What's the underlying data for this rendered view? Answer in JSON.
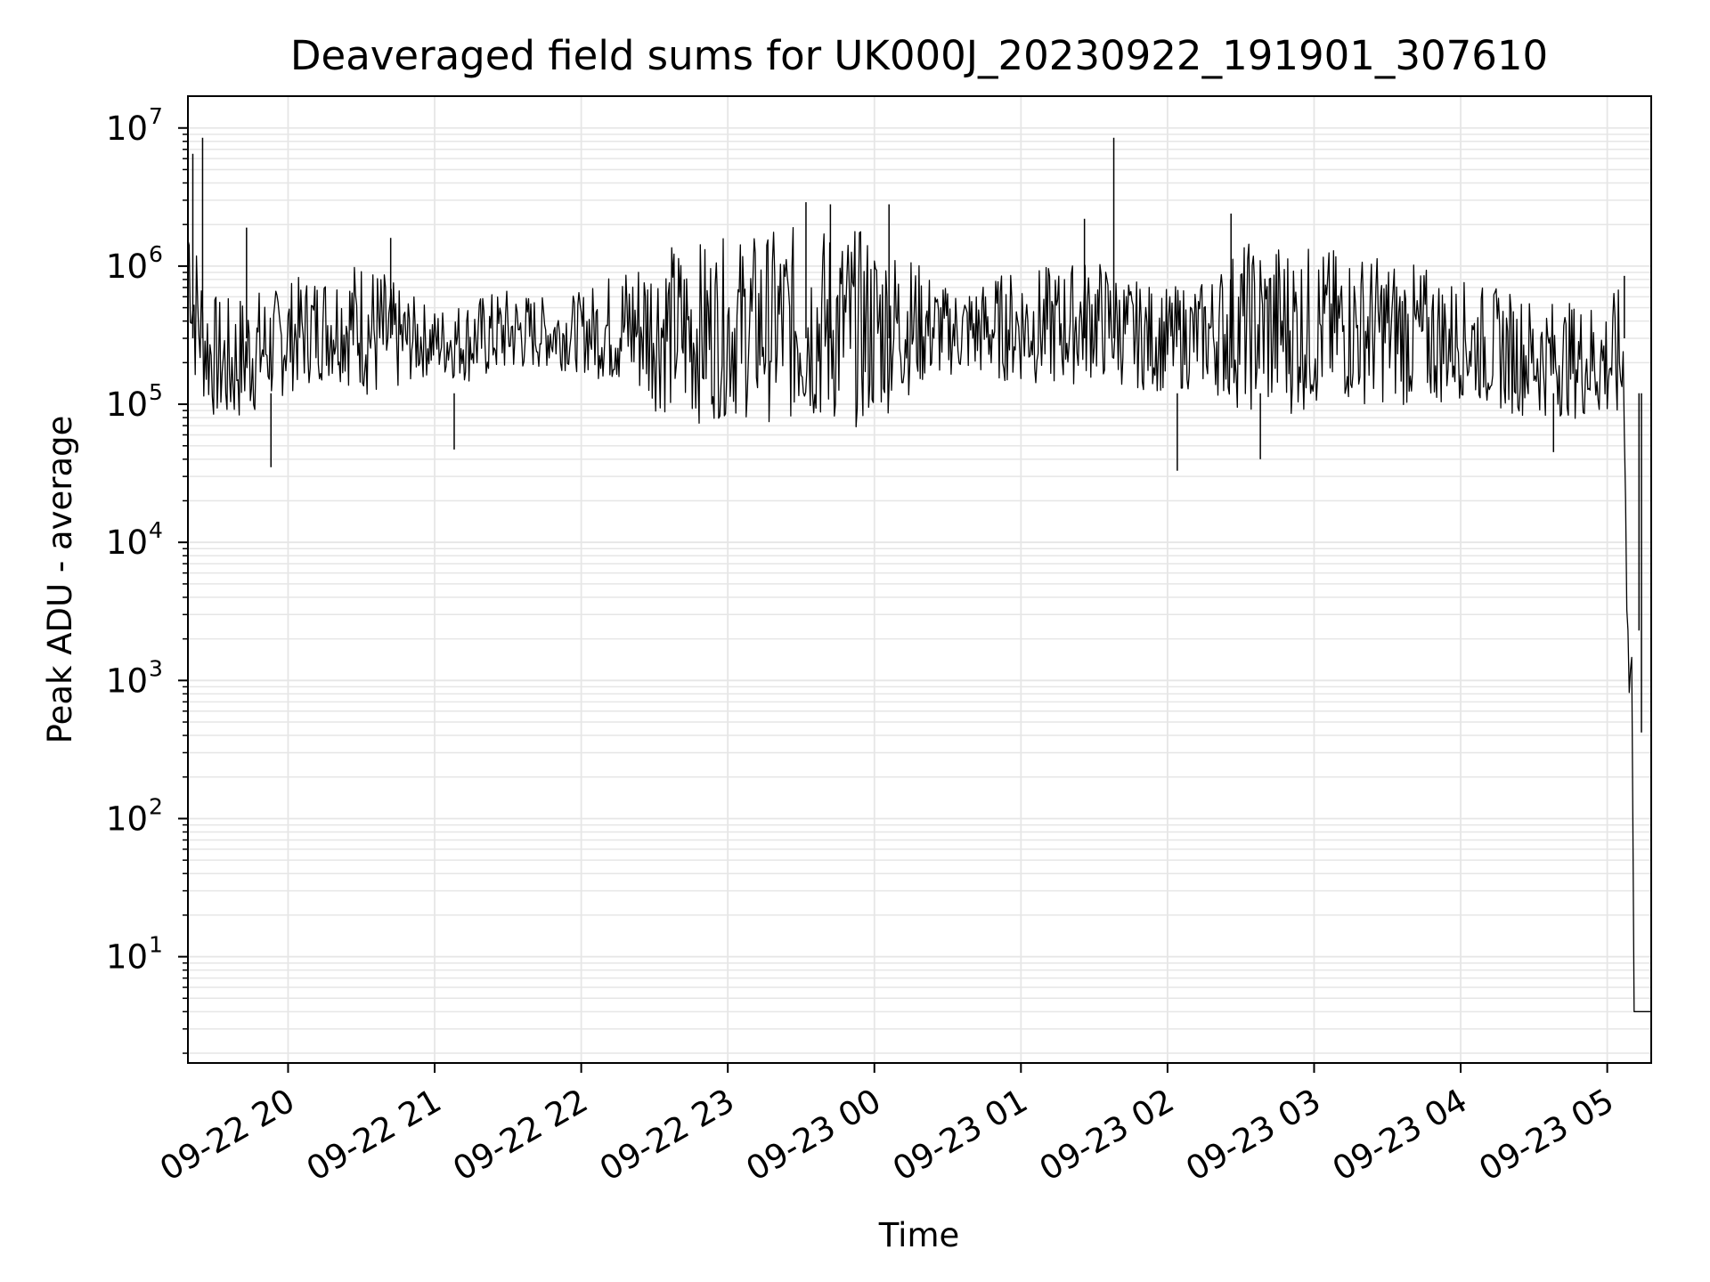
{
  "chart_data": {
    "type": "line",
    "title": "Deaveraged field sums for UK000J_20230922_191901_307610",
    "xlabel": "Time",
    "ylabel": "Peak ADU - average",
    "yscale": "log",
    "ylim": [
      1.7,
      17000000
    ],
    "xlim": [
      "2023-09-22 19:19",
      "2023-09-23 05:18"
    ],
    "grid": true,
    "line_color": "#000000",
    "grid_color": "#e6e6e6",
    "y_ticks": [
      {
        "value": 10,
        "base": "10",
        "exp": "1"
      },
      {
        "value": 100,
        "base": "10",
        "exp": "2"
      },
      {
        "value": 1000,
        "base": "10",
        "exp": "3"
      },
      {
        "value": 10000,
        "base": "10",
        "exp": "4"
      },
      {
        "value": 100000,
        "base": "10",
        "exp": "5"
      },
      {
        "value": 1000000,
        "base": "10",
        "exp": "6"
      },
      {
        "value": 10000000,
        "base": "10",
        "exp": "7"
      }
    ],
    "x_ticks": [
      {
        "value": "2023-09-22 20:00",
        "label": "09-22 20"
      },
      {
        "value": "2023-09-22 21:00",
        "label": "09-22 21"
      },
      {
        "value": "2023-09-22 22:00",
        "label": "09-22 22"
      },
      {
        "value": "2023-09-22 23:00",
        "label": "09-22 23"
      },
      {
        "value": "2023-09-23 00:00",
        "label": "09-23 00"
      },
      {
        "value": "2023-09-23 01:00",
        "label": "09-23 01"
      },
      {
        "value": "2023-09-23 02:00",
        "label": "09-23 02"
      },
      {
        "value": "2023-09-23 03:00",
        "label": "09-23 03"
      },
      {
        "value": "2023-09-23 04:00",
        "label": "09-23 04"
      },
      {
        "value": "2023-09-23 05:00",
        "label": "09-23 05"
      }
    ],
    "series": [
      {
        "x": [
          "2023-09-22 19:19",
          "2023-09-22 19:20",
          "2023-09-22 19:21",
          "2023-09-22 19:23",
          "2023-09-22 19:25",
          "2023-09-22 19:28",
          "2023-09-22 19:32",
          "2023-09-22 19:36",
          "2023-09-22 19:40",
          "2023-09-22 19:45",
          "2023-09-22 19:50",
          "2023-09-22 19:55",
          "2023-09-22 20:00",
          "2023-09-22 20:10",
          "2023-09-22 20:20",
          "2023-09-22 20:30",
          "2023-09-22 20:38",
          "2023-09-22 20:45",
          "2023-09-22 20:52",
          "2023-09-22 21:00",
          "2023-09-22 21:15",
          "2023-09-22 21:30",
          "2023-09-22 21:45",
          "2023-09-22 22:00",
          "2023-09-22 22:15",
          "2023-09-22 22:30",
          "2023-09-22 22:45",
          "2023-09-22 23:00",
          "2023-09-22 23:15",
          "2023-09-22 23:30",
          "2023-09-22 23:45",
          "2023-09-23 00:00",
          "2023-09-23 00:15",
          "2023-09-23 00:30",
          "2023-09-23 00:45",
          "2023-09-23 01:00",
          "2023-09-23 01:15",
          "2023-09-23 01:30",
          "2023-09-23 01:45",
          "2023-09-23 02:00",
          "2023-09-23 02:15",
          "2023-09-23 02:30",
          "2023-09-23 02:45",
          "2023-09-23 03:00",
          "2023-09-23 03:15",
          "2023-09-23 03:30",
          "2023-09-23 03:45",
          "2023-09-23 04:00",
          "2023-09-23 04:15",
          "2023-09-23 04:30",
          "2023-09-23 04:45",
          "2023-09-23 05:00",
          "2023-09-23 05:05",
          "2023-09-23 05:07",
          "2023-09-23 05:08",
          "2023-09-23 05:09",
          "2023-09-23 05:10",
          "2023-09-23 05:11",
          "2023-09-23 05:12",
          "2023-09-23 05:18"
        ],
        "low": [
          500000,
          300000,
          150000,
          120000,
          100000,
          80000,
          70000,
          60000,
          70000,
          80000,
          90000,
          100000,
          120000,
          140000,
          150000,
          120000,
          90000,
          120000,
          150000,
          160000,
          140000,
          160000,
          180000,
          170000,
          130000,
          90000,
          70000,
          80000,
          75000,
          70000,
          65000,
          70000,
          120000,
          160000,
          150000,
          140000,
          130000,
          150000,
          130000,
          120000,
          130000,
          90000,
          80000,
          90000,
          100000,
          100000,
          90000,
          110000,
          90000,
          80000,
          80000,
          70000,
          60000,
          50000,
          3000,
          500,
          600,
          4,
          4,
          4
        ],
        "high": [
          5000000,
          3000000,
          2000000,
          1500000,
          1000000,
          700000,
          600000,
          600000,
          650000,
          700000,
          700000,
          700000,
          800000,
          900000,
          1000000,
          1200000,
          1000000,
          700000,
          600000,
          500000,
          600000,
          700000,
          600000,
          650000,
          1000000,
          1500000,
          1500000,
          1600000,
          1800000,
          2000000,
          2000000,
          1800000,
          1200000,
          700000,
          800000,
          1000000,
          1000000,
          1200000,
          800000,
          700000,
          800000,
          1500000,
          1600000,
          1400000,
          1300000,
          1200000,
          1000000,
          800000,
          700000,
          600000,
          550000,
          600000,
          700000,
          600000,
          5000,
          2000,
          3000,
          4,
          4,
          4
        ]
      }
    ],
    "spikes": [
      {
        "x": "2023-09-22 19:25",
        "y": 8500000
      },
      {
        "x": "2023-09-22 19:21",
        "y": 6500000
      },
      {
        "x": "2023-09-22 19:43",
        "y": 1900000
      },
      {
        "x": "2023-09-22 19:53",
        "y": 35000
      },
      {
        "x": "2023-09-22 20:42",
        "y": 1600000
      },
      {
        "x": "2023-09-22 21:08",
        "y": 47000
      },
      {
        "x": "2023-09-22 23:32",
        "y": 2900000
      },
      {
        "x": "2023-09-22 23:42",
        "y": 2800000
      },
      {
        "x": "2023-09-23 00:06",
        "y": 2800000
      },
      {
        "x": "2023-09-23 01:38",
        "y": 8500000
      },
      {
        "x": "2023-09-23 01:26",
        "y": 2200000
      },
      {
        "x": "2023-09-23 02:04",
        "y": 33000
      },
      {
        "x": "2023-09-23 02:26",
        "y": 2400000
      },
      {
        "x": "2023-09-23 02:38",
        "y": 40000
      },
      {
        "x": "2023-09-23 04:38",
        "y": 45000
      },
      {
        "x": "2023-09-23 05:07",
        "y": 850000
      },
      {
        "x": "2023-09-23 05:13",
        "y": 2300
      },
      {
        "x": "2023-09-23 05:14",
        "y": 420
      }
    ]
  }
}
